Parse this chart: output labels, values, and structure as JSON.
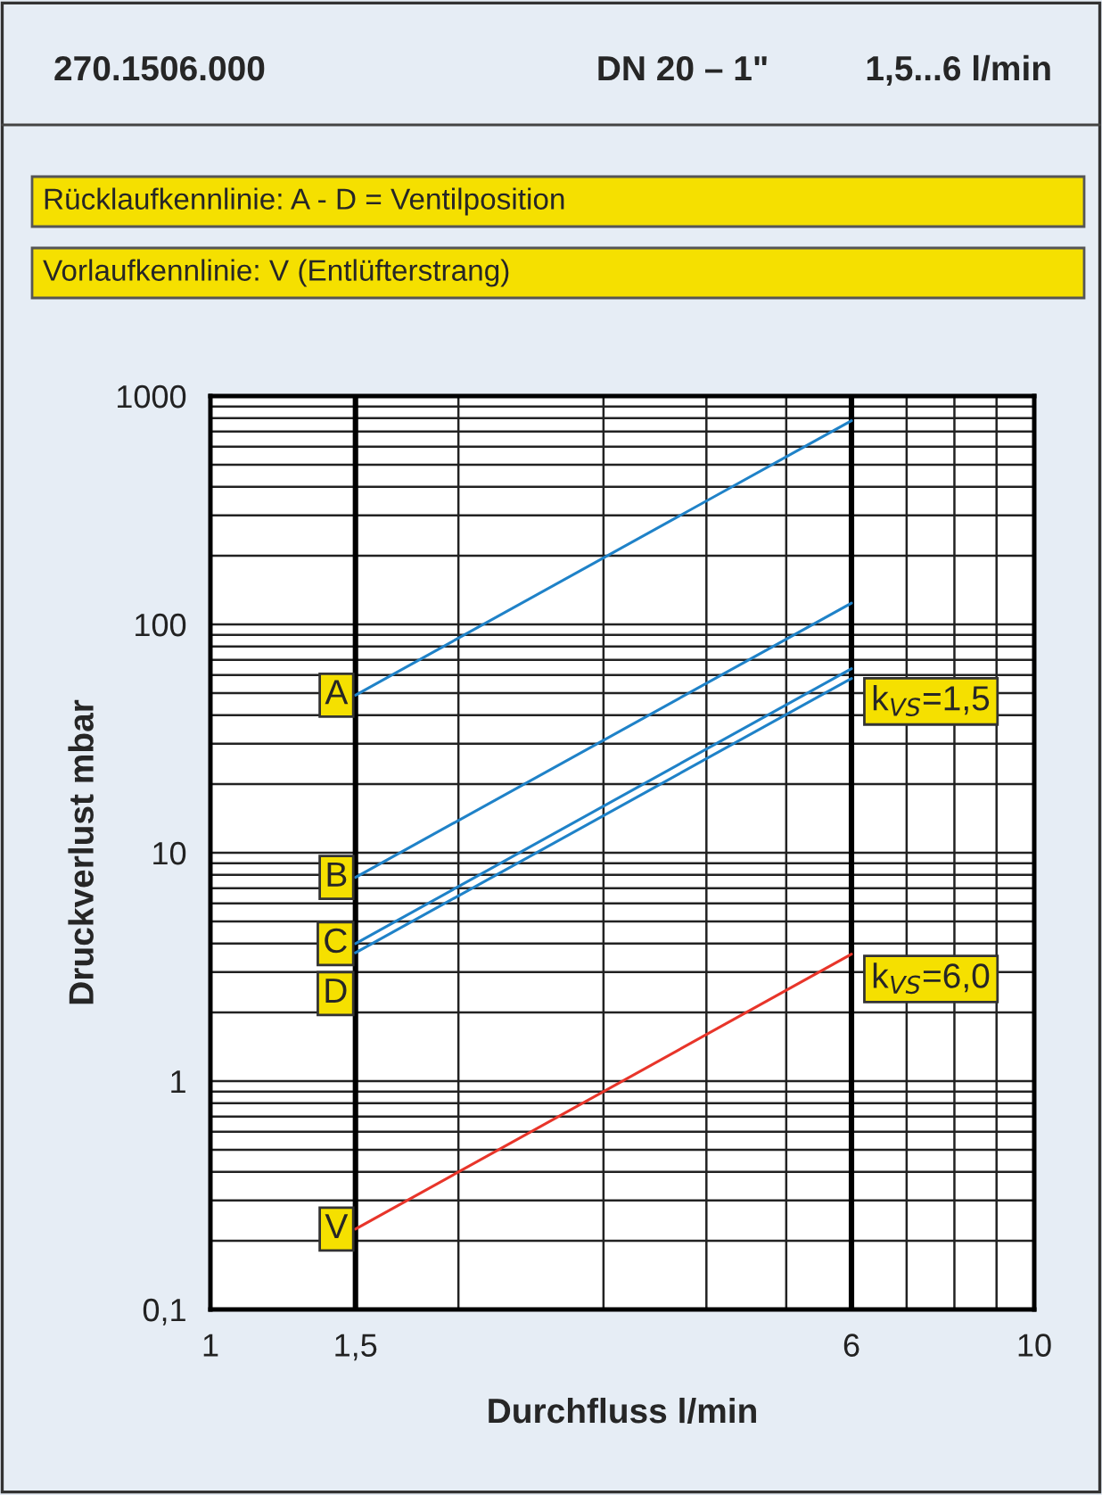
{
  "chart_data": {
    "type": "line",
    "title": "270.1506.000",
    "subtitle": "DN 20 – 1\"          1,5...6 l/min",
    "xlabel": "Durchfluss l/min",
    "ylabel": "Druckverlust mbar",
    "log": "xy",
    "grid": true,
    "legend": false,
    "xlim": [
      1,
      10
    ],
    "xticks": [
      1,
      {
        "value": 1.5,
        "label": "1,5"
      },
      6,
      10
    ],
    "ylim": [
      0.1,
      1000
    ],
    "yticks": [
      {
        "value": 0.1,
        "label": "0,1"
      },
      1,
      10,
      100,
      1000
    ],
    "x": [
      1.5,
      6
    ],
    "series": [
      {
        "name": "A",
        "color": "#1f82c8",
        "values": [
          49,
          780
        ]
      },
      {
        "name": "B",
        "color": "#1f82c8",
        "values": [
          7.8,
          124
        ]
      },
      {
        "name": "C",
        "color": "#1f82c8",
        "values": [
          4.0,
          64
        ]
      },
      {
        "name": "D",
        "color": "#1f82c8",
        "values": [
          3.65,
          58
        ]
      },
      {
        "name": "V",
        "color": "#e8352a",
        "values": [
          0.225,
          3.6
        ]
      }
    ],
    "ref_lines": [
      {
        "axis": "x",
        "value": 1.5,
        "color": "#000000"
      },
      {
        "axis": "x",
        "value": 6,
        "color": "#000000"
      }
    ],
    "annotations": [
      "Rücklaufkennlinie: A - D = Ventilposition",
      "Vorlaufkennlinie: V (Entlüfterstrang)",
      {
        "text": "k$_{VS}$=1,5",
        "x": 6,
        "y": 46
      },
      {
        "text": "k$_{VS}$=6,0",
        "x": 6,
        "y": 2.8
      }
    ]
  }
}
